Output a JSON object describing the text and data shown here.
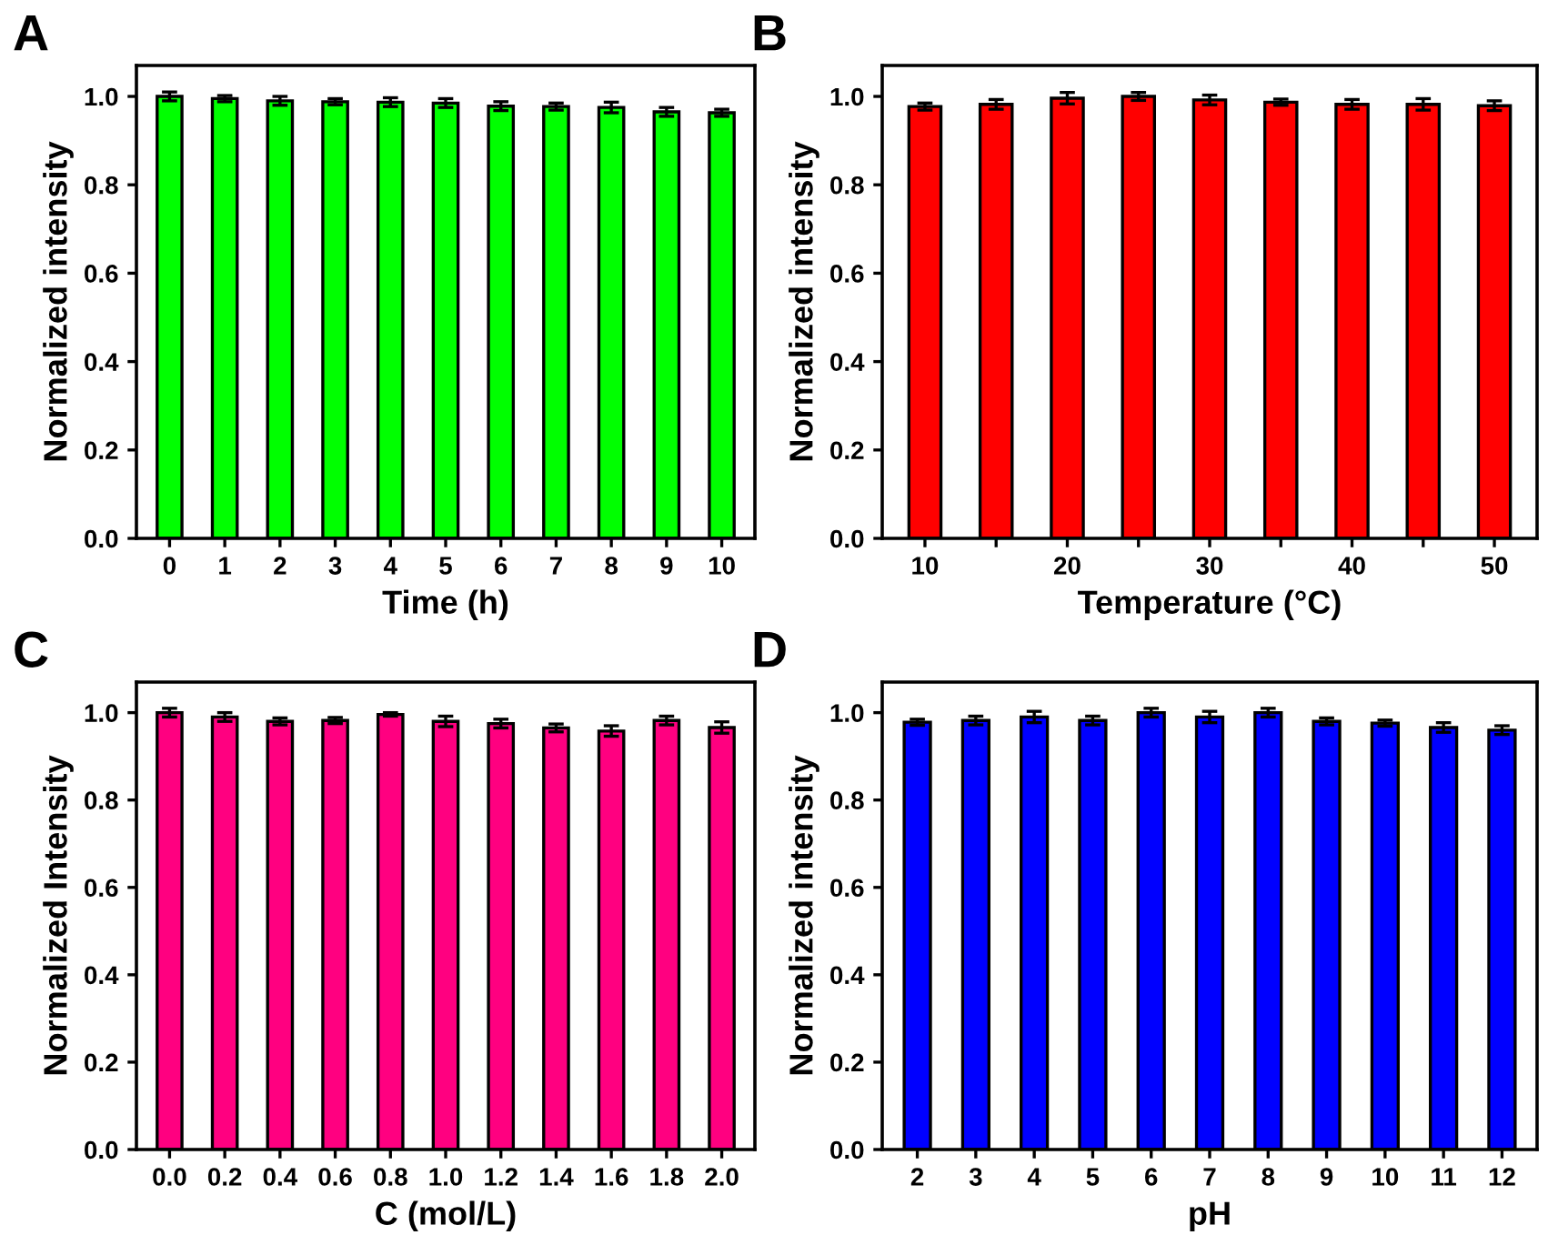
{
  "chart_data": [
    {
      "type": "bar",
      "title": "A",
      "xlabel": "Time (h)",
      "ylabel": "Normalized intensity",
      "categories": [
        "0",
        "1",
        "2",
        "3",
        "4",
        "5",
        "6",
        "7",
        "8",
        "9",
        "10"
      ],
      "color": "#00ff00",
      "values": [
        1.0,
        0.995,
        0.99,
        0.988,
        0.987,
        0.985,
        0.978,
        0.977,
        0.975,
        0.965,
        0.963
      ],
      "errors": [
        0.01,
        0.007,
        0.01,
        0.007,
        0.01,
        0.01,
        0.01,
        0.008,
        0.012,
        0.01,
        0.008
      ],
      "ylim": [
        0,
        1.07
      ],
      "yticks": [
        {
          "value": 0,
          "label": "0.0"
        },
        {
          "value": 0.2,
          "label": "0.2"
        },
        {
          "value": 0.4,
          "label": "0.4"
        },
        {
          "value": 0.6,
          "label": "0.6"
        },
        {
          "value": 0.8,
          "label": "0.8"
        },
        {
          "value": 1.0,
          "label": "1.0"
        }
      ],
      "grid": false,
      "legend": false
    },
    {
      "type": "bar",
      "title": "B",
      "xlabel": "Temperature (°C)",
      "ylabel": "Normalized intensity",
      "categories": [
        "10",
        null,
        "20",
        null,
        "30",
        null,
        "40",
        null,
        "50"
      ],
      "color": "#ff0000",
      "values": [
        0.977,
        0.982,
        0.996,
        1.0,
        0.992,
        0.987,
        0.982,
        0.982,
        0.979
      ],
      "errors": [
        0.008,
        0.011,
        0.013,
        0.009,
        0.011,
        0.007,
        0.011,
        0.013,
        0.011
      ],
      "ylim": [
        0,
        1.07
      ],
      "yticks": [
        {
          "value": 0,
          "label": "0.0"
        },
        {
          "value": 0.2,
          "label": "0.2"
        },
        {
          "value": 0.4,
          "label": "0.4"
        },
        {
          "value": 0.6,
          "label": "0.6"
        },
        {
          "value": 0.8,
          "label": "0.8"
        },
        {
          "value": 1.0,
          "label": "1.0"
        }
      ],
      "grid": false,
      "legend": false
    },
    {
      "type": "bar",
      "title": "C",
      "xlabel": "C (mol/L)",
      "ylabel": "Normalized Intensity",
      "categories": [
        "0.0",
        "0.2",
        "0.4",
        "0.6",
        "0.8",
        "1.0",
        "1.2",
        "1.4",
        "1.6",
        "1.8",
        "2.0"
      ],
      "color": "#ff0080",
      "values": [
        1.0,
        0.99,
        0.98,
        0.982,
        0.996,
        0.98,
        0.975,
        0.965,
        0.958,
        0.982,
        0.966
      ],
      "errors": [
        0.01,
        0.01,
        0.008,
        0.007,
        0.004,
        0.012,
        0.01,
        0.009,
        0.012,
        0.01,
        0.013
      ],
      "ylim": [
        0,
        1.07
      ],
      "yticks": [
        {
          "value": 0,
          "label": "0.0"
        },
        {
          "value": 0.2,
          "label": "0.2"
        },
        {
          "value": 0.4,
          "label": "0.4"
        },
        {
          "value": 0.6,
          "label": "0.6"
        },
        {
          "value": 0.8,
          "label": "0.8"
        },
        {
          "value": 1.0,
          "label": "1.0"
        }
      ],
      "grid": false,
      "legend": false
    },
    {
      "type": "bar",
      "title": "D",
      "xlabel": "pH",
      "ylabel": "Normalized intensity",
      "categories": [
        "2",
        "3",
        "4",
        "5",
        "6",
        "7",
        "8",
        "9",
        "10",
        "11",
        "12"
      ],
      "color": "#0000ff",
      "values": [
        0.978,
        0.982,
        0.99,
        0.982,
        1.0,
        0.99,
        1.0,
        0.98,
        0.976,
        0.966,
        0.96
      ],
      "errors": [
        0.007,
        0.01,
        0.013,
        0.01,
        0.01,
        0.013,
        0.01,
        0.008,
        0.007,
        0.011,
        0.01
      ],
      "ylim": [
        0,
        1.07
      ],
      "yticks": [
        {
          "value": 0,
          "label": "0.0"
        },
        {
          "value": 0.2,
          "label": "0.2"
        },
        {
          "value": 0.4,
          "label": "0.4"
        },
        {
          "value": 0.6,
          "label": "0.6"
        },
        {
          "value": 0.8,
          "label": "0.8"
        },
        {
          "value": 1.0,
          "label": "1.0"
        }
      ],
      "grid": false,
      "legend": false
    }
  ]
}
